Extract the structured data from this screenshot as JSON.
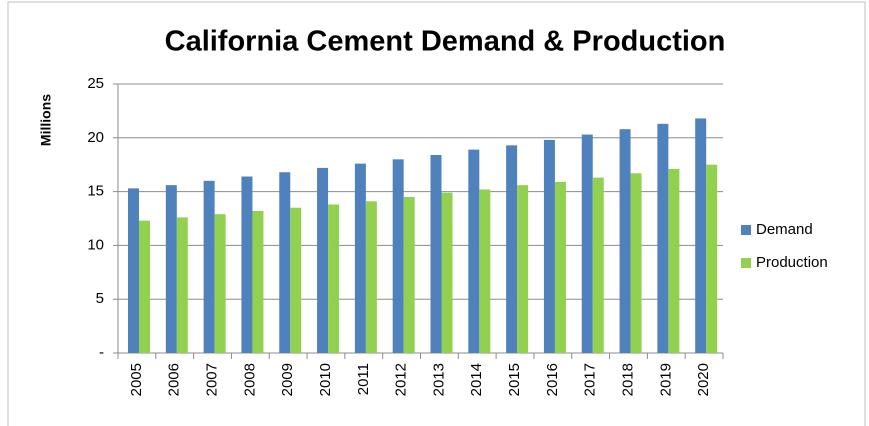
{
  "chart_data": {
    "type": "bar",
    "title": "California Cement Demand & Production",
    "y_label": "Millions",
    "categories": [
      "2005",
      "2006",
      "2007",
      "2008",
      "2009",
      "2010",
      "2011",
      "2012",
      "2013",
      "2014",
      "2015",
      "2016",
      "2017",
      "2018",
      "2019",
      "2020"
    ],
    "series": [
      {
        "name": "Demand",
        "color": "#4f81bd",
        "values": [
          15.3,
          15.6,
          16.0,
          16.4,
          16.8,
          17.2,
          17.6,
          18.0,
          18.4,
          18.9,
          19.3,
          19.8,
          20.3,
          20.8,
          21.3,
          21.8
        ]
      },
      {
        "name": "Production",
        "color": "#92d050",
        "values": [
          12.3,
          12.6,
          12.9,
          13.2,
          13.5,
          13.8,
          14.1,
          14.5,
          14.9,
          15.2,
          15.6,
          15.9,
          16.3,
          16.7,
          17.1,
          17.5
        ]
      }
    ],
    "ylim": [
      0,
      25
    ],
    "yticks": [
      {
        "value": 0,
        "label": "-"
      },
      5,
      10,
      15,
      20,
      25
    ],
    "grid": true,
    "legend": "right"
  }
}
